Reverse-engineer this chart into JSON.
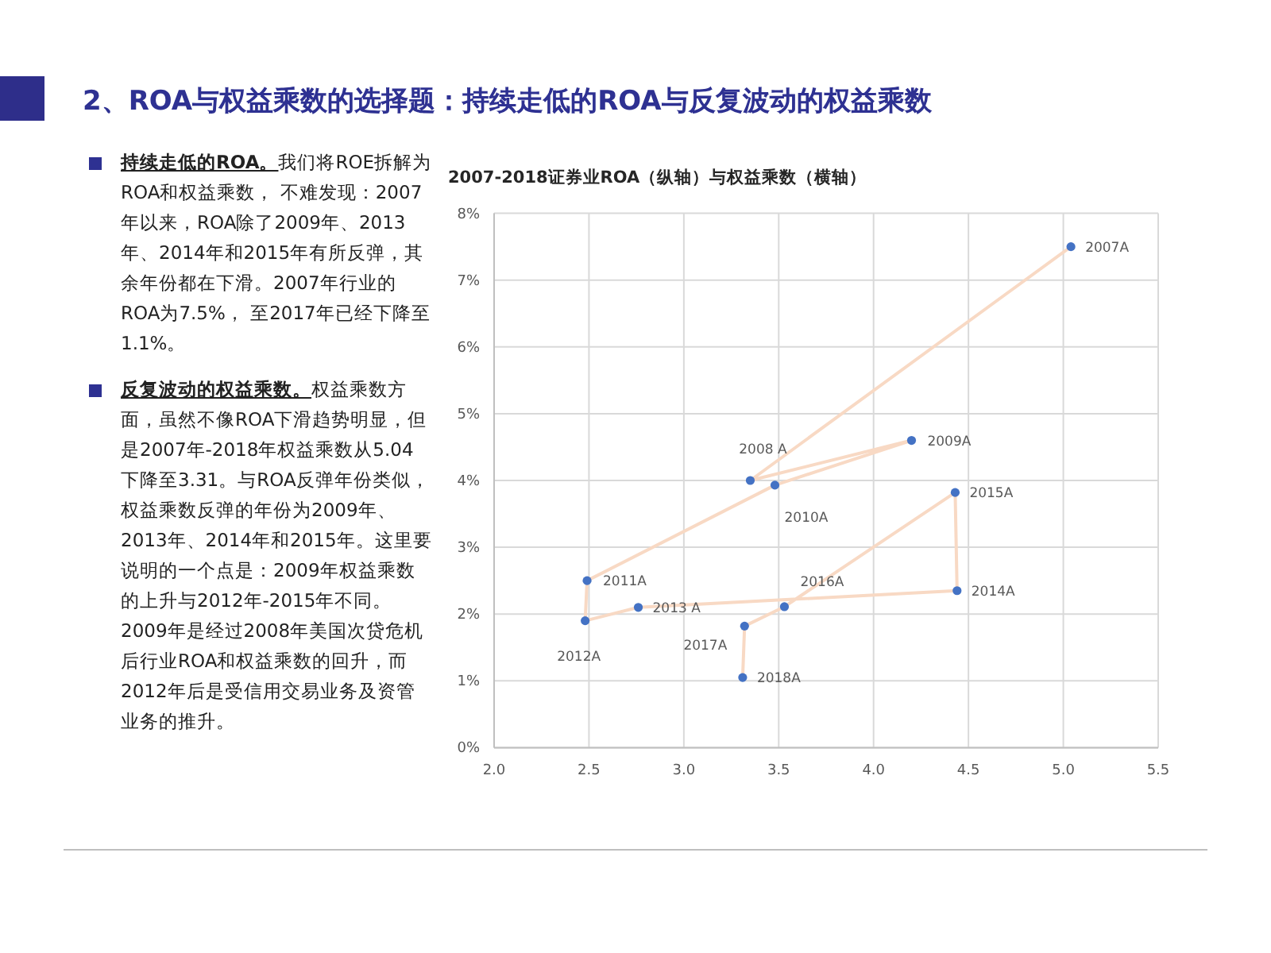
{
  "chart_data": {
    "type": "line",
    "title": "2、ROA与权益乘数的选择题：持续走低的ROA与反复波动的权益乘数",
    "subtitle": "2007-2018证券业ROA（纵轴）与权益乘数（横轴）",
    "series": [
      {
        "marker": "none",
        "color": "#f8d9c4",
        "x": [
          5.04,
          3.35,
          4.2,
          3.48,
          2.49,
          2.48,
          2.76,
          4.44,
          4.43,
          3.53,
          3.32,
          3.31
        ],
        "values": [
          7.5,
          4.0,
          4.6,
          3.93,
          2.5,
          1.9,
          2.1,
          2.35,
          3.82,
          2.11,
          1.82,
          1.05
        ]
      },
      {
        "type": "scatter",
        "marker": "circle",
        "color": "#4472c4",
        "x": [
          5.04,
          3.35,
          4.2,
          3.48,
          2.49,
          2.48,
          2.76,
          4.44,
          4.43,
          3.53,
          3.32,
          3.31
        ],
        "values": [
          7.5,
          4.0,
          4.6,
          3.93,
          2.5,
          1.9,
          2.1,
          2.35,
          3.82,
          2.11,
          1.82,
          1.05
        ]
      }
    ],
    "xlim": [
      2,
      5.5
    ],
    "ylim": [
      0,
      8
    ],
    "xticks": [
      {
        "value": 2,
        "label": "2.0"
      },
      {
        "value": 2.5,
        "label": "2.5"
      },
      {
        "value": 3,
        "label": "3.0"
      },
      {
        "value": 3.5,
        "label": "3.5"
      },
      {
        "value": 4,
        "label": "4.0"
      },
      {
        "value": 4.5,
        "label": "4.5"
      },
      {
        "value": 5,
        "label": "5.0"
      },
      {
        "value": 5.5,
        "label": "5.5"
      }
    ],
    "yticks": [
      {
        "value": 0,
        "label": "0%"
      },
      {
        "value": 1,
        "label": "1%"
      },
      {
        "value": 2,
        "label": "2%"
      },
      {
        "value": 3,
        "label": "3%"
      },
      {
        "value": 4,
        "label": "4%"
      },
      {
        "value": 5,
        "label": "5%"
      },
      {
        "value": 6,
        "label": "6%"
      },
      {
        "value": 7,
        "label": "7%"
      },
      {
        "value": 8,
        "label": "8%"
      }
    ],
    "grid": true,
    "annotations": [
      "**持续走低的ROA。**我们将ROE拆解为ROA和权益乘数， 不难发现：2007年以来，ROA除了2009年、2013年、2014年和2015年有所反弹，其余年份都在下滑。2007年行业的ROA为7.5%， 至2017年已经下降至1.1%。",
      "**反复波动的权益乘数。**权益乘数方面，虽然不像ROA下滑趋势明显，但是2007年-2018年权益乘数从5.04下降至3.31。与ROA反弹年份类似，权益乘数反弹的年份为2009年、2013年、2014年和2015年。这里要说明的一个点是：2009年权益乘数的上升与2012年-2015年不同。　2009年是经过2008年美国次贷危机后行业ROA和权益乘数的回升，而2012年后是受信用交易业务及资管业务的推升。",
      {
        "text": "2007A",
        "x": 5.04,
        "y": 7.5
      },
      {
        "text": "2008 A",
        "x": 3.35,
        "y": 4.0
      },
      {
        "text": "2009A",
        "x": 4.2,
        "y": 4.6
      },
      {
        "text": "2010A",
        "x": 3.48,
        "y": 3.93
      },
      {
        "text": "2011A",
        "x": 2.49,
        "y": 2.5
      },
      {
        "text": "2012A",
        "x": 2.48,
        "y": 1.9
      },
      {
        "text": "2013 A",
        "x": 2.76,
        "y": 2.1
      },
      {
        "text": "2014A",
        "x": 4.44,
        "y": 2.35
      },
      {
        "text": "2015A",
        "x": 4.43,
        "y": 3.82
      },
      {
        "text": "2016A",
        "x": 3.53,
        "y": 2.11
      },
      {
        "text": "2017A",
        "x": 3.32,
        "y": 1.82
      },
      {
        "text": "2018A",
        "x": 3.31,
        "y": 1.05
      }
    ]
  }
}
